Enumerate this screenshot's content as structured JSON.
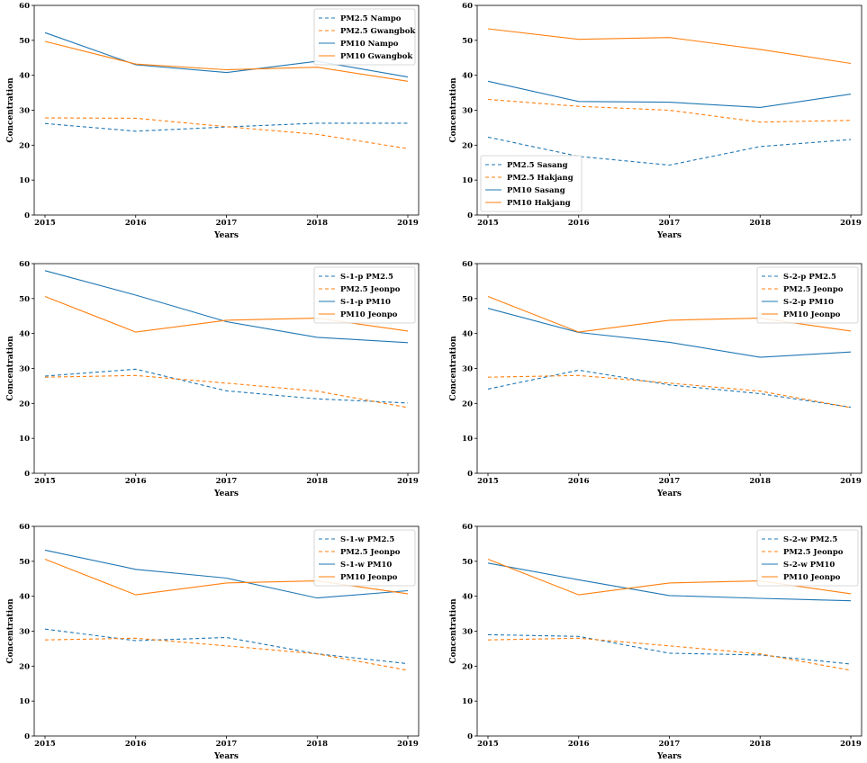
{
  "chart_data": [
    {
      "type": "line",
      "xlabel": "Years",
      "ylabel": "Concentration",
      "categories": [
        "2015",
        "2016",
        "2017",
        "2018",
        "2019"
      ],
      "ylim": [
        0,
        60
      ],
      "yticks": [
        0,
        10,
        20,
        30,
        40,
        50,
        60
      ],
      "legend": "top-right",
      "series": [
        {
          "name": "PM2.5 Nampo",
          "values": [
            26.2,
            24.0,
            25.2,
            26.3,
            26.3
          ],
          "color": "#1f77b4",
          "dashed": true
        },
        {
          "name": "PM2.5 Gwangbok",
          "values": [
            27.8,
            27.7,
            25.3,
            23.1,
            19.0
          ],
          "color": "#ff7f0e",
          "dashed": true
        },
        {
          "name": "PM10 Nampo",
          "values": [
            52.2,
            43.0,
            40.8,
            44.0,
            39.5
          ],
          "color": "#1f77b4",
          "dashed": false
        },
        {
          "name": "PM10 Gwangbok",
          "values": [
            49.7,
            43.2,
            41.6,
            42.3,
            38.3
          ],
          "color": "#ff7f0e",
          "dashed": false
        }
      ]
    },
    {
      "type": "line",
      "xlabel": "Years",
      "ylabel": "Concentration",
      "categories": [
        "2015",
        "2016",
        "2017",
        "2018",
        "2019"
      ],
      "ylim": [
        0,
        60
      ],
      "yticks": [
        0,
        10,
        20,
        30,
        40,
        50,
        60
      ],
      "legend": "bottom-left",
      "series": [
        {
          "name": "PM2.5 Sasang",
          "values": [
            22.3,
            16.8,
            14.3,
            19.6,
            21.6
          ],
          "color": "#1f77b4",
          "dashed": true
        },
        {
          "name": "PM2.5 Hakjang",
          "values": [
            33.1,
            31.1,
            30.0,
            26.6,
            27.1
          ],
          "color": "#ff7f0e",
          "dashed": true
        },
        {
          "name": "PM10 Sasang",
          "values": [
            38.3,
            32.5,
            32.3,
            30.8,
            34.6
          ],
          "color": "#1f77b4",
          "dashed": false
        },
        {
          "name": "PM10 Hakjang",
          "values": [
            53.3,
            50.3,
            50.8,
            47.4,
            43.4
          ],
          "color": "#ff7f0e",
          "dashed": false
        }
      ]
    },
    {
      "type": "line",
      "xlabel": "Years",
      "ylabel": "Concentration",
      "categories": [
        "2015",
        "2016",
        "2017",
        "2018",
        "2019"
      ],
      "ylim": [
        0,
        60
      ],
      "yticks": [
        0,
        10,
        20,
        30,
        40,
        50,
        60
      ],
      "legend": "top-right",
      "series": [
        {
          "name": "S-1-p PM2.5",
          "values": [
            27.8,
            29.8,
            23.6,
            21.3,
            20.1
          ],
          "color": "#1f77b4",
          "dashed": true
        },
        {
          "name": "PM2.5 Jeonpo",
          "values": [
            27.5,
            28.0,
            25.8,
            23.5,
            18.8
          ],
          "color": "#ff7f0e",
          "dashed": true
        },
        {
          "name": "S-1-p PM10",
          "values": [
            58.0,
            51.0,
            43.4,
            38.9,
            37.4
          ],
          "color": "#1f77b4",
          "dashed": false
        },
        {
          "name": "PM10 Jeonpo",
          "values": [
            50.6,
            40.4,
            43.8,
            44.4,
            40.7
          ],
          "color": "#ff7f0e",
          "dashed": false
        }
      ]
    },
    {
      "type": "line",
      "xlabel": "Years",
      "ylabel": "Concentration",
      "categories": [
        "2015",
        "2016",
        "2017",
        "2018",
        "2019"
      ],
      "ylim": [
        0,
        60
      ],
      "yticks": [
        0,
        10,
        20,
        30,
        40,
        50,
        60
      ],
      "legend": "top-right",
      "series": [
        {
          "name": "S-2-p PM2.5",
          "values": [
            24.1,
            29.5,
            25.3,
            22.8,
            18.9
          ],
          "color": "#1f77b4",
          "dashed": true
        },
        {
          "name": "PM2.5 Jeonpo",
          "values": [
            27.5,
            28.0,
            25.8,
            23.5,
            18.8
          ],
          "color": "#ff7f0e",
          "dashed": true
        },
        {
          "name": "S-2-p PM10",
          "values": [
            47.2,
            40.3,
            37.5,
            33.2,
            34.7
          ],
          "color": "#1f77b4",
          "dashed": false
        },
        {
          "name": "PM10 Jeonpo",
          "values": [
            50.6,
            40.4,
            43.8,
            44.4,
            40.7
          ],
          "color": "#ff7f0e",
          "dashed": false
        }
      ]
    },
    {
      "type": "line",
      "xlabel": "Years",
      "ylabel": "Concentration",
      "categories": [
        "2015",
        "2016",
        "2017",
        "2018",
        "2019"
      ],
      "ylim": [
        0,
        60
      ],
      "yticks": [
        0,
        10,
        20,
        30,
        40,
        50,
        60
      ],
      "legend": "top-right",
      "series": [
        {
          "name": "S-1-w PM2.5",
          "values": [
            30.6,
            27.3,
            28.2,
            23.5,
            20.7
          ],
          "color": "#1f77b4",
          "dashed": true
        },
        {
          "name": "PM2.5 Jeonpo",
          "values": [
            27.5,
            28.0,
            25.8,
            23.5,
            18.8
          ],
          "color": "#ff7f0e",
          "dashed": true
        },
        {
          "name": "S-1-w PM10",
          "values": [
            53.2,
            47.7,
            45.2,
            39.5,
            41.6
          ],
          "color": "#1f77b4",
          "dashed": false
        },
        {
          "name": "PM10 Jeonpo",
          "values": [
            50.6,
            40.4,
            43.8,
            44.4,
            40.7
          ],
          "color": "#ff7f0e",
          "dashed": false
        }
      ]
    },
    {
      "type": "line",
      "xlabel": "Years",
      "ylabel": "Concentration",
      "categories": [
        "2015",
        "2016",
        "2017",
        "2018",
        "2019"
      ],
      "ylim": [
        0,
        60
      ],
      "yticks": [
        0,
        10,
        20,
        30,
        40,
        50,
        60
      ],
      "legend": "top-right",
      "series": [
        {
          "name": "S-2-w PM2.5",
          "values": [
            29.0,
            28.5,
            23.7,
            23.2,
            20.6
          ],
          "color": "#1f77b4",
          "dashed": true
        },
        {
          "name": "PM2.5 Jeonpo",
          "values": [
            27.5,
            28.0,
            25.8,
            23.5,
            18.8
          ],
          "color": "#ff7f0e",
          "dashed": true
        },
        {
          "name": "S-2-w PM10",
          "values": [
            49.5,
            44.7,
            40.2,
            39.4,
            38.7
          ],
          "color": "#1f77b4",
          "dashed": false
        },
        {
          "name": "PM10 Jeonpo",
          "values": [
            50.6,
            40.4,
            43.8,
            44.4,
            40.7
          ],
          "color": "#ff7f0e",
          "dashed": false
        }
      ]
    }
  ]
}
